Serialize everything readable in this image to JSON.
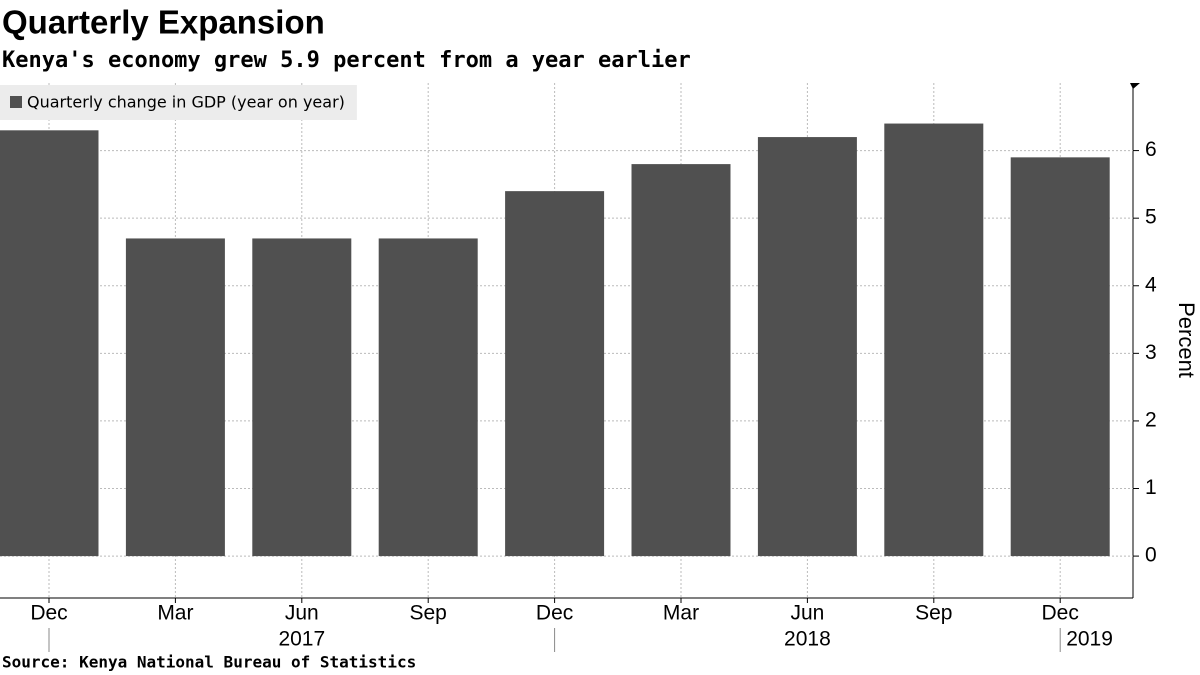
{
  "chart_data": {
    "type": "bar",
    "title": "Quarterly Expansion",
    "subtitle": "Kenya's economy grew 5.9 percent from a year earlier",
    "source": "Source: Kenya National Bureau of Statistics",
    "y_label": "Percent",
    "categories": [
      "Dec",
      "Mar",
      "Jun",
      "Sep",
      "Dec",
      "Mar",
      "Jun",
      "Sep",
      "Dec"
    ],
    "years": [
      "2017",
      "2018",
      "2019"
    ],
    "series": [
      {
        "name": "Quarterly change in GDP (year on year)",
        "color": "#505050",
        "values": [
          6.3,
          4.7,
          4.7,
          4.7,
          5.4,
          5.8,
          6.2,
          6.4,
          5.9
        ]
      }
    ],
    "ylim": [
      -0.62,
      7
    ],
    "yticks": [
      0,
      1,
      2,
      3,
      4,
      5,
      6
    ],
    "grid": true,
    "legend": "top-left"
  }
}
